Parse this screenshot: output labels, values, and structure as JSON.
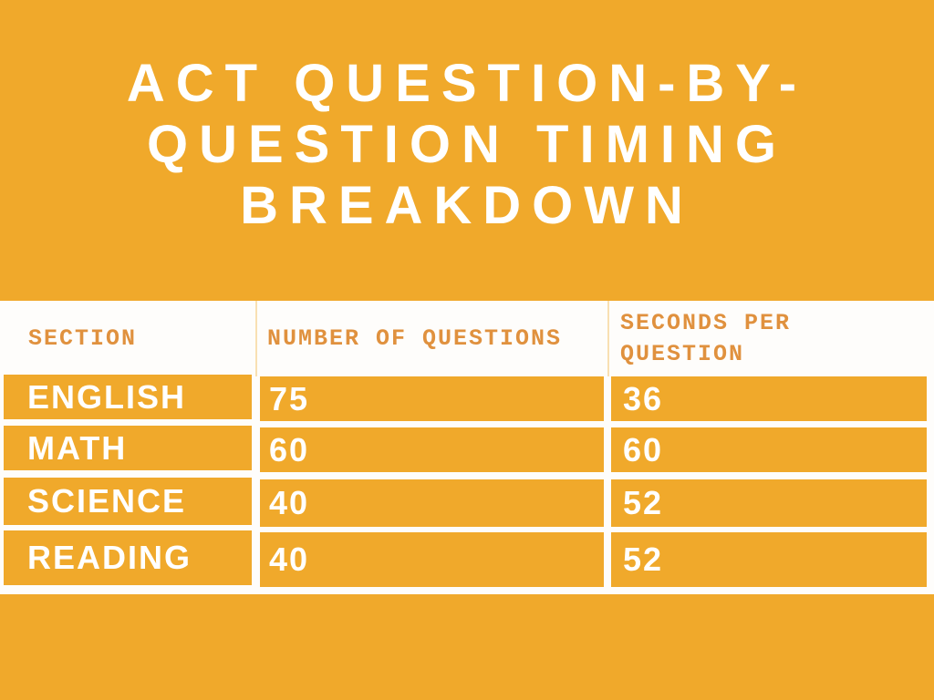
{
  "title": {
    "full_text": "ACT QUESTION-BY-QUESTION TIMING BREAKDOWN",
    "lines": [
      "ACT QUESTION-BY-",
      "QUESTION TIMING",
      "BREAKDOWN"
    ]
  },
  "chart_data": {
    "type": "table",
    "title": "ACT QUESTION-BY-QUESTION TIMING BREAKDOWN",
    "columns": [
      "SECTION",
      "NUMBER OF QUESTIONS",
      "SECONDS PER QUESTION"
    ],
    "rows": [
      [
        "ENGLISH",
        "75",
        "36"
      ],
      [
        "MATH",
        "60",
        "60"
      ],
      [
        "SCIENCE",
        "40",
        "52"
      ],
      [
        "READING",
        "40",
        "52"
      ]
    ]
  },
  "colors": {
    "background_orange": "#F0A92B",
    "cell_orange": "#F0A92B",
    "header_text_orange": "#E0913E",
    "table_background_white": "#FEFDFB",
    "title_text_white": "#FFFFFF",
    "cell_text_white": "#FFFFFF"
  }
}
